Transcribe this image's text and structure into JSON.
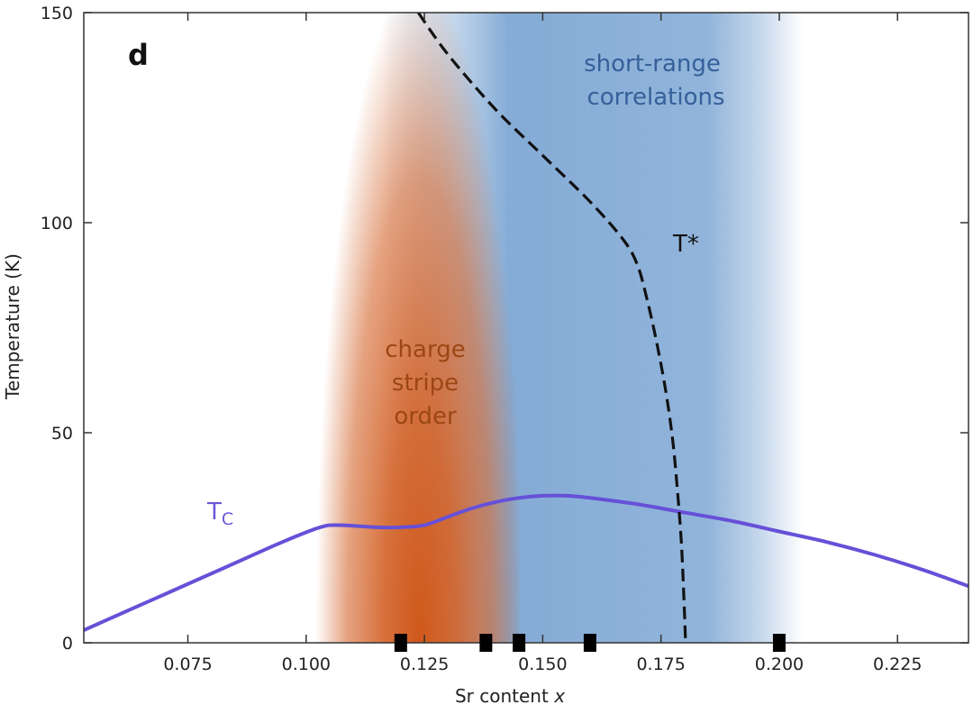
{
  "chart_data": {
    "type": "line",
    "panel_label": "d",
    "xlabel_main": "Sr content ",
    "xlabel_var": "x",
    "ylabel": "Temperature (K)",
    "xlim": [
      0.053,
      0.24
    ],
    "ylim": [
      0,
      150
    ],
    "x_ticks": [
      0.075,
      0.1,
      0.125,
      0.15,
      0.175,
      0.2,
      0.225
    ],
    "x_tick_labels": [
      "0.075",
      "0.100",
      "0.125",
      "0.150",
      "0.175",
      "0.200",
      "0.225"
    ],
    "y_ticks": [
      0,
      50,
      100,
      150
    ],
    "y_tick_labels": [
      "0",
      "50",
      "100",
      "150"
    ],
    "grid": false,
    "regions": [
      {
        "label_lines": [
          "short-range",
          "correlations"
        ],
        "color": "#7ea7d4",
        "x_range": [
          0.116,
          0.205
        ],
        "x_core": [
          0.143,
          0.185
        ]
      },
      {
        "label_lines": [
          "charge",
          "stripe",
          "order"
        ],
        "color": "#d0581a",
        "x_range": [
          0.101,
          0.145
        ],
        "peak_x": 0.124
      }
    ],
    "series": [
      {
        "name": "T",
        "name_sub": "C",
        "color": "#6650d8",
        "style": "solid",
        "x": [
          0.053,
          0.07,
          0.085,
          0.095,
          0.103,
          0.107,
          0.115,
          0.12,
          0.125,
          0.13,
          0.135,
          0.14,
          0.145,
          0.15,
          0.155,
          0.16,
          0.17,
          0.18,
          0.19,
          0.2,
          0.21,
          0.22,
          0.23,
          0.24
        ],
        "y": [
          3,
          11.5,
          19,
          24,
          27.5,
          28,
          27.5,
          27.5,
          28,
          30,
          32,
          33.5,
          34.5,
          35,
          35,
          34.5,
          33,
          31,
          29,
          26.5,
          24,
          21,
          17.5,
          13.5
        ]
      },
      {
        "name": "T*",
        "color": "#111111",
        "style": "dashed",
        "x": [
          0.1237,
          0.13,
          0.14,
          0.15,
          0.16,
          0.167,
          0.17,
          0.172,
          0.174,
          0.176,
          0.1775,
          0.1785,
          0.1793,
          0.1798,
          0.1802
        ],
        "y": [
          150,
          140,
          127,
          116,
          105,
          96,
          90,
          82,
          72,
          60,
          48,
          36,
          24,
          12,
          0
        ]
      }
    ],
    "markers": {
      "shape": "square",
      "color": "#000000",
      "x": [
        0.12,
        0.138,
        0.145,
        0.16,
        0.2
      ],
      "y": 0
    }
  }
}
